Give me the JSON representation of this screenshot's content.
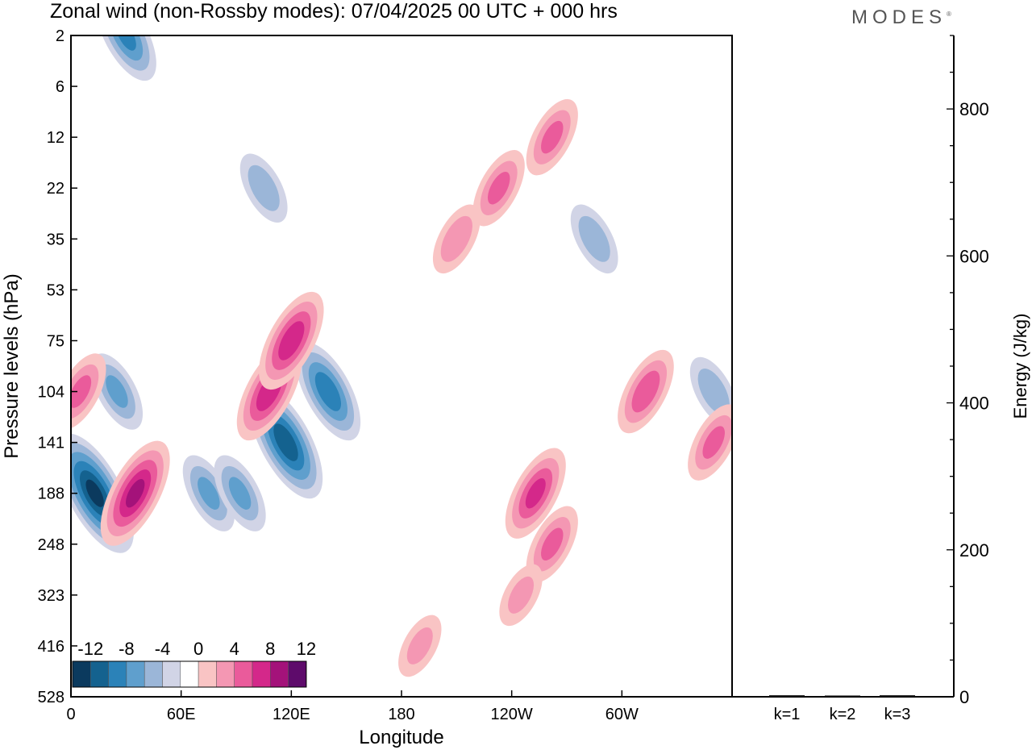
{
  "title": "Zonal wind (non-Rossby modes):  07/04/2025  00 UTC  + 000 hrs",
  "logo": "MODES",
  "chart_data": [
    {
      "type": "heatmap",
      "title": "Zonal wind (non-Rossby modes):  07/04/2025  00 UTC  + 000 hrs",
      "xlabel": "Longitude",
      "ylabel": "Pressure levels (hPa)",
      "x_ticks": [
        {
          "lon": 0,
          "label": "0"
        },
        {
          "lon": 60,
          "label": "60E"
        },
        {
          "lon": 120,
          "label": "120E"
        },
        {
          "lon": 180,
          "label": "180"
        },
        {
          "lon": 240,
          "label": "120W"
        },
        {
          "lon": 300,
          "label": "60W"
        }
      ],
      "xlim": [
        0,
        360
      ],
      "y_levels": [
        "2",
        "6",
        "12",
        "22",
        "35",
        "53",
        "75",
        "104",
        "141",
        "188",
        "248",
        "323",
        "416",
        "528"
      ],
      "colorbar": {
        "labels": [
          "-12",
          "-8",
          "-4",
          "0",
          "4",
          "8",
          "12"
        ],
        "levels": [
          -14,
          -12,
          -10,
          -8,
          -6,
          -4,
          -2,
          2,
          4,
          6,
          8,
          10,
          12,
          14
        ],
        "colors": [
          "#0b3a5e",
          "#14628f",
          "#2b82b8",
          "#5f9fcd",
          "#9bb6d8",
          "#d1d4e6",
          "#ffffff",
          "#f9c4c4",
          "#f497b3",
          "#ea5b9b",
          "#d4288a",
          "#a4127a",
          "#5e0b6b"
        ]
      },
      "features": [
        {
          "lon": 13,
          "level": "188",
          "value": -12
        },
        {
          "lon": 35,
          "level": "188",
          "value": 10
        },
        {
          "lon": 25,
          "level": "104",
          "value": -6
        },
        {
          "lon": 5,
          "level": "104",
          "value": 6
        },
        {
          "lon": 75,
          "level": "188",
          "value": -6
        },
        {
          "lon": 92,
          "level": "188",
          "value": -6
        },
        {
          "lon": 117,
          "level": "141",
          "value": -11
        },
        {
          "lon": 140,
          "level": "104",
          "value": -9
        },
        {
          "lon": 108,
          "level": "104",
          "value": 9
        },
        {
          "lon": 120,
          "level": "75",
          "value": 9
        },
        {
          "lon": 253,
          "level": "188",
          "value": 8
        },
        {
          "lon": 262,
          "level": "248",
          "value": 6
        },
        {
          "lon": 313,
          "level": "104",
          "value": 7
        },
        {
          "lon": 262,
          "level": "12",
          "value": 6
        },
        {
          "lon": 233,
          "level": "22",
          "value": 6
        },
        {
          "lon": 210,
          "level": "35",
          "value": 5
        },
        {
          "lon": 30,
          "level": "2",
          "value": -8
        },
        {
          "lon": 105,
          "level": "22",
          "value": -5
        },
        {
          "lon": 285,
          "level": "35",
          "value": -5
        },
        {
          "lon": 350,
          "level": "104",
          "value": -5
        },
        {
          "lon": 350,
          "level": "141",
          "value": 6
        },
        {
          "lon": 190,
          "level": "416",
          "value": 4
        },
        {
          "lon": 245,
          "level": "323",
          "value": 4
        }
      ]
    },
    {
      "type": "bar",
      "categories": [
        "k=1",
        "k=2",
        "k=3"
      ],
      "values": [
        2,
        1,
        2
      ],
      "ylabel": "Energy (J/kg)",
      "ylim": [
        0,
        900
      ],
      "y_ticks": [
        0,
        200,
        400,
        600,
        800
      ]
    }
  ]
}
